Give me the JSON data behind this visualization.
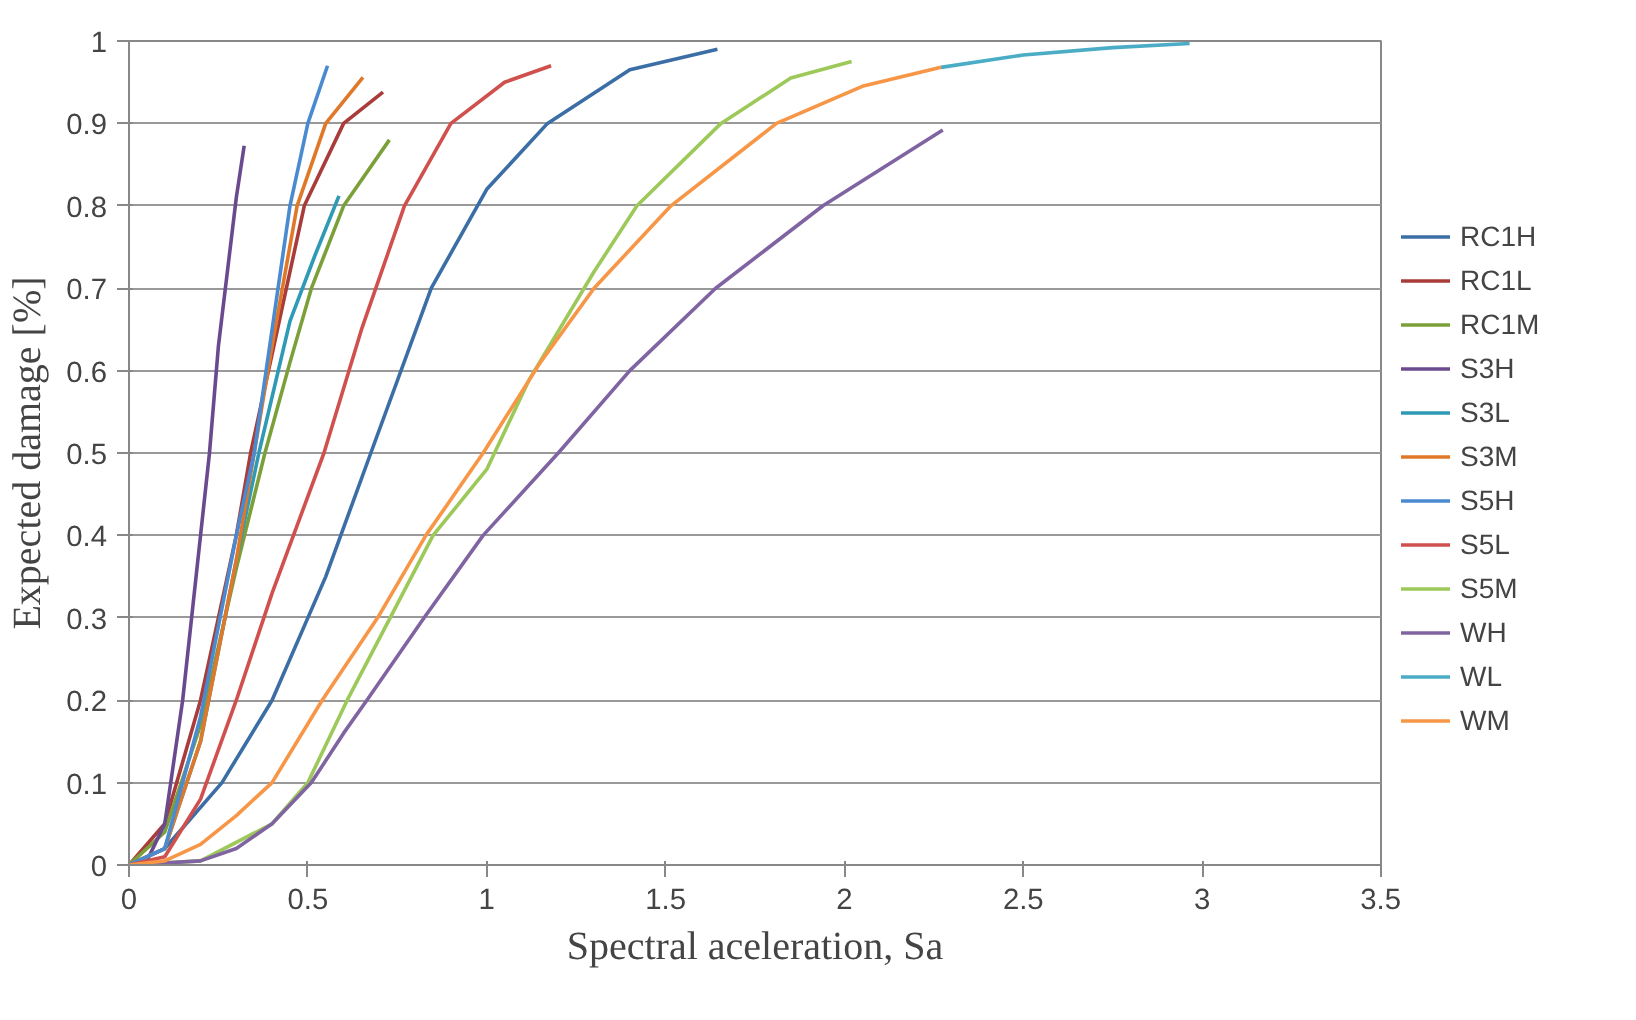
{
  "chart_data": {
    "type": "line",
    "xlabel": "Spectral aceleration, Sa",
    "ylabel": "Expected damage [%]",
    "xlim": [
      0,
      3.5
    ],
    "ylim": [
      0,
      1
    ],
    "xticks": [
      0,
      0.5,
      1,
      1.5,
      2,
      2.5,
      3,
      3.5
    ],
    "yticks": [
      0,
      0.1,
      0.2,
      0.3,
      0.4,
      0.5,
      0.6,
      0.7,
      0.8,
      0.9,
      1
    ],
    "grid": "y",
    "legend": "right",
    "marker": "none",
    "line_style": "solid",
    "series": [
      {
        "name": "RC1H",
        "color": "#3c6ea6",
        "x": [
          0,
          0.1,
          0.26,
          0.4,
          0.55,
          0.676,
          0.845,
          1.0,
          1.17,
          1.4,
          1.645
        ],
        "values": [
          0,
          0.02,
          0.1,
          0.2,
          0.35,
          0.5,
          0.7,
          0.82,
          0.9,
          0.965,
          0.99
        ]
      },
      {
        "name": "RC1L",
        "color": "#a93c3a",
        "x": [
          0,
          0.1,
          0.2,
          0.3,
          0.34,
          0.4,
          0.49,
          0.6,
          0.71
        ],
        "values": [
          0,
          0.05,
          0.2,
          0.4,
          0.5,
          0.62,
          0.8,
          0.9,
          0.938
        ]
      },
      {
        "name": "RC1M",
        "color": "#7ba03a",
        "x": [
          0,
          0.1,
          0.2,
          0.3,
          0.38,
          0.45,
          0.51,
          0.6,
          0.728
        ],
        "values": [
          0,
          0.04,
          0.17,
          0.36,
          0.5,
          0.61,
          0.7,
          0.8,
          0.88
        ]
      },
      {
        "name": "S3H",
        "color": "#6a4a8e",
        "x": [
          0,
          0.05,
          0.1,
          0.15,
          0.2,
          0.225,
          0.25,
          0.3,
          0.322
        ],
        "values": [
          0,
          0.005,
          0.05,
          0.2,
          0.4,
          0.5,
          0.63,
          0.81,
          0.873
        ]
      },
      {
        "name": "S3L",
        "color": "#2e9ab5",
        "x": [
          0,
          0.1,
          0.2,
          0.3,
          0.363,
          0.45,
          0.52,
          0.587
        ],
        "values": [
          0,
          0.02,
          0.15,
          0.37,
          0.5,
          0.66,
          0.74,
          0.812
        ]
      },
      {
        "name": "S3M",
        "color": "#e0782a",
        "x": [
          0,
          0.1,
          0.2,
          0.3,
          0.35,
          0.4,
          0.47,
          0.55,
          0.654
        ],
        "values": [
          0,
          0.02,
          0.15,
          0.37,
          0.5,
          0.63,
          0.8,
          0.9,
          0.956
        ]
      },
      {
        "name": "S5H",
        "color": "#4a8ad0",
        "x": [
          0,
          0.1,
          0.2,
          0.3,
          0.35,
          0.4,
          0.45,
          0.5,
          0.555
        ],
        "values": [
          0,
          0.02,
          0.18,
          0.4,
          0.5,
          0.65,
          0.8,
          0.9,
          0.97
        ]
      },
      {
        "name": "S5L",
        "color": "#d0504d",
        "x": [
          0,
          0.1,
          0.2,
          0.3,
          0.4,
          0.545,
          0.65,
          0.77,
          0.9,
          1.05,
          1.18
        ],
        "values": [
          0,
          0.01,
          0.08,
          0.2,
          0.33,
          0.5,
          0.65,
          0.8,
          0.9,
          0.95,
          0.97
        ]
      },
      {
        "name": "S5M",
        "color": "#9dc85a",
        "x": [
          0,
          0.2,
          0.4,
          0.5,
          0.61,
          0.73,
          0.85,
          1.0,
          1.12,
          1.3,
          1.42,
          1.655,
          1.85,
          2.02
        ],
        "values": [
          0,
          0.005,
          0.05,
          0.1,
          0.2,
          0.3,
          0.4,
          0.48,
          0.59,
          0.72,
          0.8,
          0.9,
          0.955,
          0.975
        ]
      },
      {
        "name": "WH",
        "color": "#8064a2",
        "x": [
          0,
          0.2,
          0.3,
          0.4,
          0.51,
          0.6,
          0.665,
          0.825,
          0.99,
          1.2,
          1.4,
          1.64,
          1.94,
          2.275
        ],
        "values": [
          0,
          0.005,
          0.02,
          0.05,
          0.1,
          0.16,
          0.2,
          0.3,
          0.4,
          0.5,
          0.6,
          0.7,
          0.8,
          0.892
        ]
      },
      {
        "name": "WL",
        "color": "#4bacc6",
        "x": [
          2.27,
          2.5,
          2.75,
          2.965
        ],
        "values": [
          0.968,
          0.983,
          0.992,
          0.997
        ]
      },
      {
        "name": "WM",
        "color": "#f79646",
        "x": [
          0,
          0.1,
          0.2,
          0.3,
          0.4,
          0.54,
          0.695,
          0.83,
          0.99,
          1.15,
          1.3,
          1.515,
          1.81,
          2.05,
          2.27
        ],
        "values": [
          0,
          0.005,
          0.025,
          0.06,
          0.1,
          0.2,
          0.3,
          0.4,
          0.5,
          0.61,
          0.7,
          0.8,
          0.9,
          0.945,
          0.968
        ]
      }
    ]
  }
}
